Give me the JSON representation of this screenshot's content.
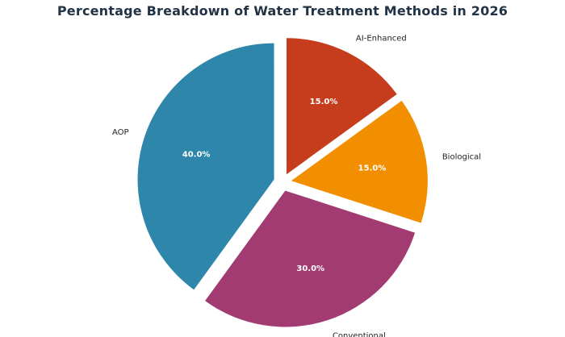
{
  "chart_data": {
    "type": "pie",
    "title": "Percentage Breakdown of Water Treatment Methods in 2026",
    "categories": [
      "AI-Enhanced",
      "Biological",
      "Conventional",
      "AOP"
    ],
    "values": [
      15.0,
      15.0,
      30.0,
      40.0
    ],
    "value_labels": [
      "15.0%",
      "15.0%",
      "30.0%",
      "40.0%"
    ],
    "colors": [
      "#c53d1c",
      "#f18f01",
      "#a23b72",
      "#2e86ab"
    ],
    "exploded": true,
    "direction": "clockwise",
    "start_angle": "top",
    "legend": "none"
  }
}
